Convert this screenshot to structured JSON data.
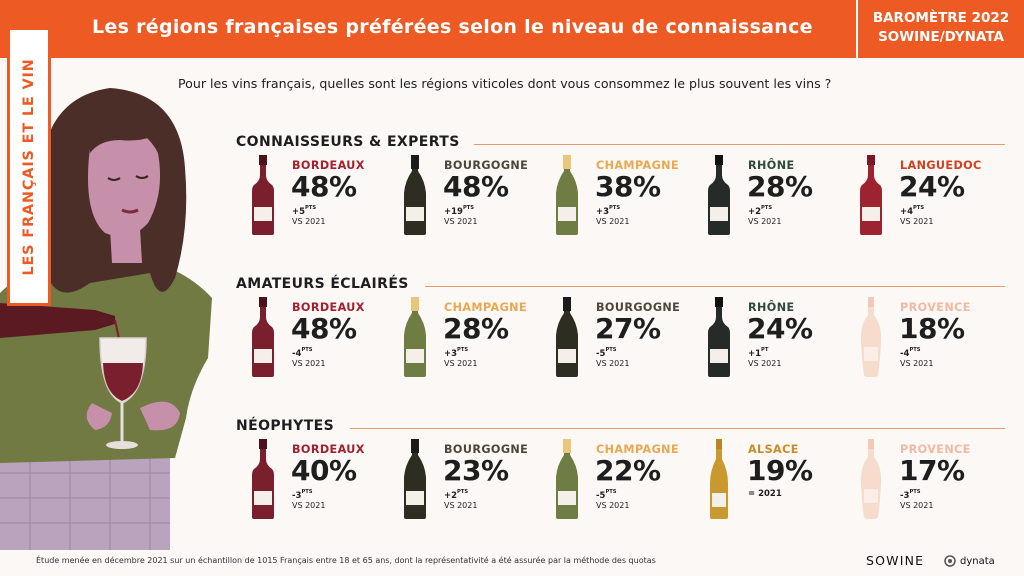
{
  "header": {
    "title": "Les régions françaises préférées selon le niveau de connaissance",
    "barometer_line1": "BAROMÈTRE 2022",
    "barometer_line2": "SOWINE/DYNATA",
    "accent": "#ee5a24"
  },
  "side_label": "LES FRANÇAIS ET LE VIN",
  "question": "Pour les vins français, quelles sont les régions viticoles dont vous consommez le plus souvent les vins ?",
  "sections": [
    {
      "title": "CONNAISSEURS & EXPERTS",
      "items": [
        {
          "region": "BORDEAUX",
          "pct": "48%",
          "delta": "+5",
          "unit": "PTS",
          "vs": "VS 2021",
          "color": "#a3202e",
          "bottle": "red-wine-bottle-icon"
        },
        {
          "region": "BOURGOGNE",
          "pct": "48%",
          "delta": "+19",
          "unit": "PTS",
          "vs": "VS 2021",
          "color": "#4d4639",
          "bottle": "burgundy-bottle-icon"
        },
        {
          "region": "CHAMPAGNE",
          "pct": "38%",
          "delta": "+3",
          "unit": "PTS",
          "vs": "VS 2021",
          "color": "#e8a850",
          "bottle": "champagne-bottle-icon"
        },
        {
          "region": "RHÔNE",
          "pct": "28%",
          "delta": "+2",
          "unit": "PTS",
          "vs": "VS 2021",
          "color": "#2f4a3b",
          "bottle": "rhone-bottle-icon"
        },
        {
          "region": "LANGUEDOC",
          "pct": "24%",
          "delta": "+4",
          "unit": "PTS",
          "vs": "VS 2021",
          "color": "#d0401e",
          "bottle": "languedoc-bottle-icon"
        }
      ]
    },
    {
      "title": "AMATEURS ÉCLAIRÉS",
      "items": [
        {
          "region": "BORDEAUX",
          "pct": "48%",
          "delta": "-4",
          "unit": "PTS",
          "vs": "VS 2021",
          "color": "#a3202e",
          "bottle": "red-wine-bottle-icon"
        },
        {
          "region": "CHAMPAGNE",
          "pct": "28%",
          "delta": "+3",
          "unit": "PTS",
          "vs": "VS 2021",
          "color": "#e8a850",
          "bottle": "champagne-bottle-icon"
        },
        {
          "region": "BOURGOGNE",
          "pct": "27%",
          "delta": "-5",
          "unit": "PTS",
          "vs": "VS 2021",
          "color": "#4d4639",
          "bottle": "burgundy-bottle-icon"
        },
        {
          "region": "RHÔNE",
          "pct": "24%",
          "delta": "+1",
          "unit": "PT",
          "vs": "VS 2021",
          "color": "#2f4a3b",
          "bottle": "rhone-bottle-icon"
        },
        {
          "region": "PROVENCE",
          "pct": "18%",
          "delta": "-4",
          "unit": "PTS",
          "vs": "VS 2021",
          "color": "#f2b9a1",
          "bottle": "rose-bottle-icon"
        }
      ]
    },
    {
      "title": "NÉOPHYTES",
      "items": [
        {
          "region": "BORDEAUX",
          "pct": "40%",
          "delta": "-3",
          "unit": "PTS",
          "vs": "VS 2021",
          "color": "#a3202e",
          "bottle": "red-wine-bottle-icon"
        },
        {
          "region": "BOURGOGNE",
          "pct": "23%",
          "delta": "+2",
          "unit": "PTS",
          "vs": "VS 2021",
          "color": "#4d4639",
          "bottle": "burgundy-bottle-icon"
        },
        {
          "region": "CHAMPAGNE",
          "pct": "22%",
          "delta": "-5",
          "unit": "PTS",
          "vs": "VS 2021",
          "color": "#e8a850",
          "bottle": "champagne-bottle-icon"
        },
        {
          "region": "ALSACE",
          "pct": "19%",
          "delta": "= 2021",
          "unit": "",
          "vs": "",
          "color": "#c78d28",
          "bottle": "alsace-bottle-icon"
        },
        {
          "region": "PROVENCE",
          "pct": "17%",
          "delta": "-3",
          "unit": "PTS",
          "vs": "VS 2021",
          "color": "#f2b9a1",
          "bottle": "rose-bottle-icon"
        }
      ]
    }
  ],
  "footnote": "Étude menée en décembre 2021 sur un échantillon de 1015 Français entre 18 et 65 ans, dont la représentativité a été assurée par la méthode des quotas",
  "logos": {
    "sowine": "SOWINE",
    "dynata": "dynata"
  }
}
